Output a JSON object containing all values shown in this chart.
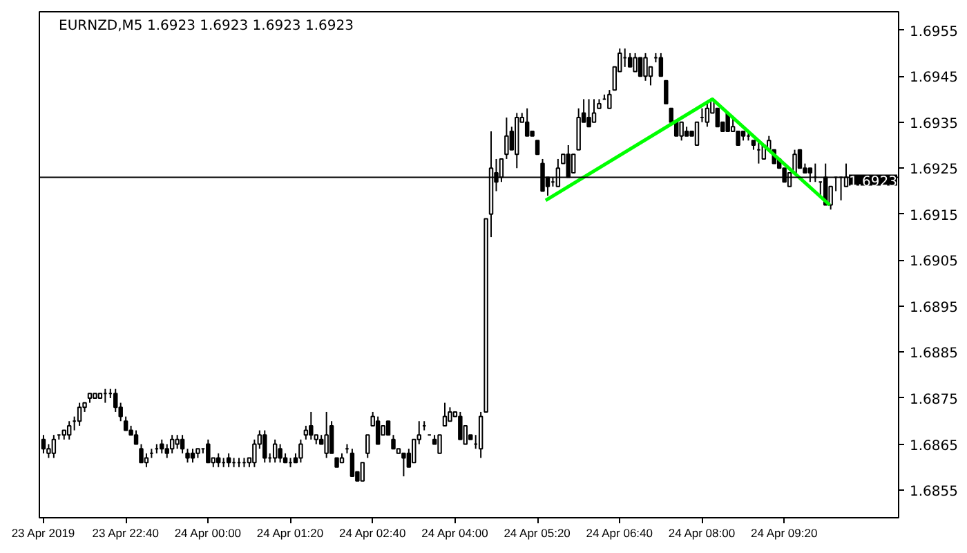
{
  "chart_data": {
    "type": "candlestick",
    "title": "EURNZD,M5 1.6923 1.6923 1.6923 1.6923",
    "x": [
      "2019-04-23T21:20",
      "2019-04-23T21:25",
      "2019-04-23T21:30",
      "2019-04-23T21:35",
      "2019-04-23T21:40",
      "2019-04-23T21:45",
      "2019-04-23T21:50",
      "2019-04-23T21:55",
      "2019-04-23T22:00",
      "2019-04-23T22:05",
      "2019-04-23T22:10",
      "2019-04-23T22:15",
      "2019-04-23T22:20",
      "2019-04-23T22:25",
      "2019-04-23T22:30",
      "2019-04-23T22:35",
      "2019-04-23T22:40",
      "2019-04-23T22:45",
      "2019-04-23T22:50",
      "2019-04-23T22:55",
      "2019-04-23T23:00",
      "2019-04-23T23:05",
      "2019-04-23T23:10",
      "2019-04-23T23:15",
      "2019-04-23T23:20",
      "2019-04-23T23:25",
      "2019-04-23T23:30",
      "2019-04-23T23:35",
      "2019-04-23T23:40",
      "2019-04-23T23:45",
      "2019-04-23T23:50",
      "2019-04-23T23:55",
      "2019-04-24T00:00",
      "2019-04-24T00:05",
      "2019-04-24T00:10",
      "2019-04-24T00:15",
      "2019-04-24T00:20",
      "2019-04-24T00:25",
      "2019-04-24T00:30",
      "2019-04-24T00:35",
      "2019-04-24T00:40",
      "2019-04-24T00:45",
      "2019-04-24T00:50",
      "2019-04-24T00:55",
      "2019-04-24T01:00",
      "2019-04-24T01:05",
      "2019-04-24T01:10",
      "2019-04-24T01:15",
      "2019-04-24T01:20",
      "2019-04-24T01:25",
      "2019-04-24T01:30",
      "2019-04-24T01:35",
      "2019-04-24T01:40",
      "2019-04-24T01:45",
      "2019-04-24T01:50",
      "2019-04-24T01:55",
      "2019-04-24T02:00",
      "2019-04-24T02:05",
      "2019-04-24T02:10",
      "2019-04-24T02:15",
      "2019-04-24T02:20",
      "2019-04-24T02:25",
      "2019-04-24T02:30",
      "2019-04-24T02:35",
      "2019-04-24T02:40",
      "2019-04-24T02:45",
      "2019-04-24T02:50",
      "2019-04-24T02:55",
      "2019-04-24T03:00",
      "2019-04-24T03:05",
      "2019-04-24T03:10",
      "2019-04-24T03:15",
      "2019-04-24T03:20",
      "2019-04-24T03:25",
      "2019-04-24T03:30",
      "2019-04-24T03:35",
      "2019-04-24T03:40",
      "2019-04-24T03:45",
      "2019-04-24T03:50",
      "2019-04-24T03:55",
      "2019-04-24T04:00",
      "2019-04-24T04:05",
      "2019-04-24T04:10",
      "2019-04-24T04:15",
      "2019-04-24T04:20",
      "2019-04-24T04:25",
      "2019-04-24T04:30",
      "2019-04-24T04:35",
      "2019-04-24T04:40",
      "2019-04-24T04:45",
      "2019-04-24T04:50",
      "2019-04-24T04:55",
      "2019-04-24T05:00",
      "2019-04-24T05:05",
      "2019-04-24T05:10",
      "2019-04-24T05:15",
      "2019-04-24T05:20",
      "2019-04-24T05:25",
      "2019-04-24T05:30",
      "2019-04-24T05:35",
      "2019-04-24T05:40",
      "2019-04-24T05:45",
      "2019-04-24T05:50",
      "2019-04-24T05:55",
      "2019-04-24T06:00",
      "2019-04-24T06:05",
      "2019-04-24T06:10",
      "2019-04-24T06:15",
      "2019-04-24T06:20",
      "2019-04-24T06:25",
      "2019-04-24T06:30",
      "2019-04-24T06:35",
      "2019-04-24T06:40",
      "2019-04-24T06:45",
      "2019-04-24T06:50",
      "2019-04-24T06:55",
      "2019-04-24T07:00",
      "2019-04-24T07:05",
      "2019-04-24T07:10",
      "2019-04-24T07:15",
      "2019-04-24T07:20",
      "2019-04-24T07:25",
      "2019-04-24T07:30",
      "2019-04-24T07:35",
      "2019-04-24T07:40",
      "2019-04-24T07:45",
      "2019-04-24T07:50",
      "2019-04-24T07:55",
      "2019-04-24T08:00",
      "2019-04-24T08:05",
      "2019-04-24T08:10",
      "2019-04-24T08:15",
      "2019-04-24T08:20",
      "2019-04-24T08:25",
      "2019-04-24T08:30",
      "2019-04-24T08:35",
      "2019-04-24T08:40",
      "2019-04-24T08:45",
      "2019-04-24T08:50",
      "2019-04-24T08:55",
      "2019-04-24T09:00",
      "2019-04-24T09:05",
      "2019-04-24T09:10",
      "2019-04-24T09:15",
      "2019-04-24T09:20",
      "2019-04-24T09:25",
      "2019-04-24T09:30",
      "2019-04-24T09:35",
      "2019-04-24T09:40",
      "2019-04-24T09:45",
      "2019-04-24T09:50",
      "2019-04-24T09:55",
      "2019-04-24T10:00",
      "2019-04-24T10:05",
      "2019-04-24T10:10",
      "2019-04-24T10:15",
      "2019-04-24T10:20"
    ],
    "ohlc": [
      [
        1.6866,
        1.6867,
        1.6863,
        1.6864
      ],
      [
        1.6863,
        1.6865,
        1.6862,
        1.6864
      ],
      [
        1.6863,
        1.6867,
        1.6862,
        1.6866
      ],
      [
        1.6867,
        1.6867,
        1.6866,
        1.6867
      ],
      [
        1.6867,
        1.6868,
        1.6866,
        1.6868
      ],
      [
        1.6867,
        1.687,
        1.6866,
        1.6869
      ],
      [
        1.687,
        1.6871,
        1.6868,
        1.687
      ],
      [
        1.687,
        1.6874,
        1.6869,
        1.6873
      ],
      [
        1.6873,
        1.6874,
        1.6872,
        1.6874
      ],
      [
        1.6875,
        1.6876,
        1.6874,
        1.6876
      ],
      [
        1.6875,
        1.6876,
        1.6875,
        1.6876
      ],
      [
        1.6875,
        1.6876,
        1.6875,
        1.6876
      ],
      [
        1.6876,
        1.6877,
        1.6874,
        1.6876
      ],
      [
        1.6876,
        1.6877,
        1.6875,
        1.6876
      ],
      [
        1.6876,
        1.6877,
        1.6872,
        1.6873
      ],
      [
        1.6873,
        1.6874,
        1.687,
        1.6871
      ],
      [
        1.687,
        1.6871,
        1.6868,
        1.6868
      ],
      [
        1.6868,
        1.6869,
        1.6867,
        1.6867
      ],
      [
        1.6867,
        1.6868,
        1.6865,
        1.6865
      ],
      [
        1.6864,
        1.6865,
        1.6861,
        1.6861
      ],
      [
        1.6861,
        1.6863,
        1.686,
        1.6862
      ],
      [
        1.6863,
        1.6864,
        1.6862,
        1.6863
      ],
      [
        1.6864,
        1.6865,
        1.6863,
        1.6864
      ],
      [
        1.6865,
        1.6866,
        1.6863,
        1.6864
      ],
      [
        1.6864,
        1.6865,
        1.6862,
        1.6863
      ],
      [
        1.6864,
        1.6867,
        1.6863,
        1.6866
      ],
      [
        1.6865,
        1.6867,
        1.6864,
        1.6866
      ],
      [
        1.6866,
        1.6867,
        1.6863,
        1.6864
      ],
      [
        1.6863,
        1.6864,
        1.6861,
        1.6862
      ],
      [
        1.6863,
        1.6864,
        1.6861,
        1.6862
      ],
      [
        1.6863,
        1.6864,
        1.6862,
        1.6864
      ],
      [
        1.6864,
        1.6864,
        1.6863,
        1.6864
      ],
      [
        1.6865,
        1.6866,
        1.6861,
        1.6861
      ],
      [
        1.6861,
        1.6862,
        1.686,
        1.6862
      ],
      [
        1.6862,
        1.6863,
        1.686,
        1.6861
      ],
      [
        1.6861,
        1.6862,
        1.686,
        1.6861
      ],
      [
        1.6862,
        1.6863,
        1.686,
        1.6861
      ],
      [
        1.6861,
        1.6862,
        1.686,
        1.6861
      ],
      [
        1.6861,
        1.6862,
        1.686,
        1.6861
      ],
      [
        1.6861,
        1.6862,
        1.686,
        1.6861
      ],
      [
        1.6861,
        1.6862,
        1.686,
        1.6862
      ],
      [
        1.6861,
        1.6866,
        1.686,
        1.6865
      ],
      [
        1.6865,
        1.6868,
        1.6864,
        1.6867
      ],
      [
        1.6867,
        1.6868,
        1.6861,
        1.6862
      ],
      [
        1.6862,
        1.6863,
        1.6861,
        1.6862
      ],
      [
        1.6862,
        1.6866,
        1.6861,
        1.6865
      ],
      [
        1.6864,
        1.6865,
        1.6861,
        1.6862
      ],
      [
        1.6862,
        1.6863,
        1.6861,
        1.6861
      ],
      [
        1.6861,
        1.6862,
        1.686,
        1.6861
      ],
      [
        1.6862,
        1.6863,
        1.6861,
        1.6861
      ],
      [
        1.6862,
        1.6866,
        1.6861,
        1.6865
      ],
      [
        1.6867,
        1.6869,
        1.6866,
        1.6868
      ],
      [
        1.6869,
        1.6872,
        1.6866,
        1.6867
      ],
      [
        1.6866,
        1.6867,
        1.6865,
        1.6867
      ],
      [
        1.6866,
        1.6867,
        1.6865,
        1.6865
      ],
      [
        1.6863,
        1.6872,
        1.6862,
        1.6867
      ],
      [
        1.6869,
        1.687,
        1.6863,
        1.6863
      ],
      [
        1.6862,
        1.6862,
        1.686,
        1.686
      ],
      [
        1.6861,
        1.6863,
        1.6861,
        1.6862
      ],
      [
        1.6864,
        1.6865,
        1.6863,
        1.6864
      ],
      [
        1.6863,
        1.6864,
        1.6858,
        1.6858
      ],
      [
        1.6859,
        1.6859,
        1.6857,
        1.6857
      ],
      [
        1.6857,
        1.6861,
        1.6857,
        1.6861
      ],
      [
        1.6863,
        1.6867,
        1.6862,
        1.6867
      ],
      [
        1.6869,
        1.6872,
        1.6869,
        1.6871
      ],
      [
        1.687,
        1.6871,
        1.6865,
        1.6865
      ],
      [
        1.6867,
        1.6869,
        1.6867,
        1.6869
      ],
      [
        1.687,
        1.687,
        1.6867,
        1.6867
      ],
      [
        1.6866,
        1.6867,
        1.6864,
        1.6864
      ],
      [
        1.6863,
        1.6864,
        1.6863,
        1.6864
      ],
      [
        1.6863,
        1.6863,
        1.6858,
        1.6862
      ],
      [
        1.6863,
        1.6864,
        1.686,
        1.686
      ],
      [
        1.6861,
        1.6866,
        1.6861,
        1.6866
      ],
      [
        1.6866,
        1.687,
        1.6865,
        1.6867
      ],
      [
        1.6869,
        1.687,
        1.6868,
        1.6869
      ],
      [
        1.6867,
        1.6867,
        1.6867,
        1.6867
      ],
      [
        1.6866,
        1.6867,
        1.6865,
        1.6865
      ],
      [
        1.6863,
        1.6867,
        1.6863,
        1.6867
      ],
      [
        1.6869,
        1.6874,
        1.6869,
        1.6871
      ],
      [
        1.687,
        1.6873,
        1.687,
        1.6872
      ],
      [
        1.6871,
        1.6872,
        1.6871,
        1.6872
      ],
      [
        1.6871,
        1.6872,
        1.6866,
        1.6866
      ],
      [
        1.6865,
        1.6869,
        1.6865,
        1.6869
      ],
      [
        1.6867,
        1.6867,
        1.6866,
        1.6866
      ],
      [
        1.6865,
        1.6867,
        1.6864,
        1.6865
      ],
      [
        1.6864,
        1.6872,
        1.6862,
        1.6871
      ],
      [
        1.6872,
        1.6914,
        1.6872,
        1.6914
      ],
      [
        1.6915,
        1.6933,
        1.691,
        1.6925
      ],
      [
        1.6924,
        1.6927,
        1.692,
        1.6922
      ],
      [
        1.6923,
        1.6927,
        1.6922,
        1.6927
      ],
      [
        1.6928,
        1.6936,
        1.6927,
        1.6932
      ],
      [
        1.6933,
        1.6934,
        1.6929,
        1.6929
      ],
      [
        1.6928,
        1.6937,
        1.6925,
        1.6936
      ],
      [
        1.6935,
        1.6937,
        1.6935,
        1.6936
      ],
      [
        1.6935,
        1.6938,
        1.6932,
        1.6932
      ],
      [
        1.6933,
        1.6933,
        1.6932,
        1.6932
      ],
      [
        1.6931,
        1.6931,
        1.6928,
        1.6928
      ],
      [
        1.6926,
        1.6927,
        1.692,
        1.692
      ],
      [
        1.6923,
        1.6923,
        1.6919,
        1.6921
      ],
      [
        1.6922,
        1.6923,
        1.6921,
        1.6922
      ],
      [
        1.6921,
        1.6927,
        1.6921,
        1.6925
      ],
      [
        1.6926,
        1.6928,
        1.6926,
        1.6928
      ],
      [
        1.6928,
        1.693,
        1.6923,
        1.6923
      ],
      [
        1.6924,
        1.6928,
        1.6924,
        1.6928
      ],
      [
        1.6929,
        1.6938,
        1.6929,
        1.6936
      ],
      [
        1.6937,
        1.694,
        1.6935,
        1.6935
      ],
      [
        1.6936,
        1.694,
        1.6934,
        1.6934
      ],
      [
        1.6935,
        1.694,
        1.6935,
        1.6937
      ],
      [
        1.6938,
        1.694,
        1.6938,
        1.6939
      ],
      [
        1.694,
        1.6941,
        1.694,
        1.694
      ],
      [
        1.6938,
        1.6942,
        1.6938,
        1.6941
      ],
      [
        1.6942,
        1.6947,
        1.6942,
        1.6947
      ],
      [
        1.6946,
        1.6951,
        1.6946,
        1.695
      ],
      [
        1.6949,
        1.6951,
        1.6947,
        1.6949
      ],
      [
        1.6949,
        1.695,
        1.6947,
        1.6947
      ],
      [
        1.6946,
        1.695,
        1.6946,
        1.6949
      ],
      [
        1.6949,
        1.6949,
        1.6945,
        1.6945
      ],
      [
        1.6945,
        1.695,
        1.6944,
        1.6949
      ],
      [
        1.6945,
        1.6947,
        1.6943,
        1.6947
      ],
      [
        1.6949,
        1.695,
        1.6948,
        1.6949
      ],
      [
        1.6949,
        1.695,
        1.6945,
        1.6945
      ],
      [
        1.6944,
        1.6944,
        1.6939,
        1.6939
      ],
      [
        1.6938,
        1.6938,
        1.6935,
        1.6935
      ],
      [
        1.6935,
        1.6935,
        1.6932,
        1.6932
      ],
      [
        1.6932,
        1.6935,
        1.6931,
        1.6935
      ],
      [
        1.6933,
        1.6934,
        1.6932,
        1.6932
      ],
      [
        1.6933,
        1.6933,
        1.6932,
        1.6932
      ],
      [
        1.693,
        1.6935,
        1.693,
        1.6935
      ],
      [
        1.6936,
        1.6938,
        1.6935,
        1.6936
      ],
      [
        1.6935,
        1.6939,
        1.6934,
        1.6938
      ],
      [
        1.6937,
        1.694,
        1.6937,
        1.694
      ],
      [
        1.6938,
        1.6938,
        1.6934,
        1.6934
      ],
      [
        1.6935,
        1.6935,
        1.6933,
        1.6933
      ],
      [
        1.6937,
        1.6937,
        1.6933,
        1.6933
      ],
      [
        1.6933,
        1.6936,
        1.6933,
        1.6934
      ],
      [
        1.6933,
        1.6933,
        1.693,
        1.693
      ],
      [
        1.6933,
        1.6933,
        1.6931,
        1.6932
      ],
      [
        1.6932,
        1.6933,
        1.6931,
        1.6932
      ],
      [
        1.6931,
        1.6931,
        1.6929,
        1.693
      ],
      [
        1.6929,
        1.6931,
        1.6926,
        1.6929
      ],
      [
        1.6927,
        1.693,
        1.6927,
        1.693
      ],
      [
        1.6929,
        1.6932,
        1.6929,
        1.6931
      ],
      [
        1.6929,
        1.6929,
        1.6926,
        1.6926
      ],
      [
        1.6927,
        1.6927,
        1.6925,
        1.6925
      ],
      [
        1.6925,
        1.6925,
        1.6922,
        1.6922
      ],
      [
        1.6921,
        1.6924,
        1.6921,
        1.6924
      ],
      [
        1.6924,
        1.6929,
        1.6924,
        1.6928
      ],
      [
        1.6929,
        1.6929,
        1.6925,
        1.6925
      ],
      [
        1.6925,
        1.6926,
        1.6924,
        1.6924
      ],
      [
        1.6925,
        1.6925,
        1.6922,
        1.6924
      ],
      [
        1.6923,
        1.6926,
        1.6922,
        1.6923
      ],
      [
        1.6922,
        1.6922,
        1.6919,
        1.6922
      ],
      [
        1.6923,
        1.6926,
        1.6917,
        1.6917
      ],
      [
        1.6917,
        1.6921,
        1.6916,
        1.6921
      ],
      [
        1.6923,
        1.6923,
        1.692,
        1.6923
      ],
      [
        1.6923,
        1.6923,
        1.6918,
        1.6923
      ],
      [
        1.6921,
        1.6926,
        1.6921,
        1.6923
      ]
    ],
    "series": [
      {
        "type": "line",
        "color": "#00ff00",
        "x": [
          "2019-04-24T05:28",
          "2019-04-24T08:10",
          "2019-04-24T10:04"
        ],
        "values": [
          1.6918,
          1.694,
          1.6917
        ]
      }
    ],
    "xlim": [
      "2019-04-23T21:16",
      "2019-04-24T11:11"
    ],
    "xticks": [
      {
        "value": "2019-04-23T21:20",
        "label": "23 Apr 2019"
      },
      {
        "value": "2019-04-23T22:40",
        "label": "23 Apr 22:40"
      },
      {
        "value": "2019-04-24T00:00",
        "label": "24 Apr 00:00"
      },
      {
        "value": "2019-04-24T01:20",
        "label": "24 Apr 01:20"
      },
      {
        "value": "2019-04-24T02:40",
        "label": "24 Apr 02:40"
      },
      {
        "value": "2019-04-24T04:00",
        "label": "24 Apr 04:00"
      },
      {
        "value": "2019-04-24T05:20",
        "label": "24 Apr 05:20"
      },
      {
        "value": "2019-04-24T06:40",
        "label": "24 Apr 06:40"
      },
      {
        "value": "2019-04-24T08:00",
        "label": "24 Apr 08:00"
      },
      {
        "value": "2019-04-24T09:20",
        "label": "24 Apr 09:20"
      }
    ],
    "ylim": [
      1.6849,
      1.6959
    ],
    "yticks": [
      1.6855,
      1.6865,
      1.6875,
      1.6885,
      1.6895,
      1.6905,
      1.6915,
      1.6925,
      1.6935,
      1.6945,
      1.6955
    ],
    "ref_lines": [
      {
        "axis": "y",
        "value": 1.6923,
        "label": "1.6923",
        "color": "#000000"
      }
    ]
  }
}
